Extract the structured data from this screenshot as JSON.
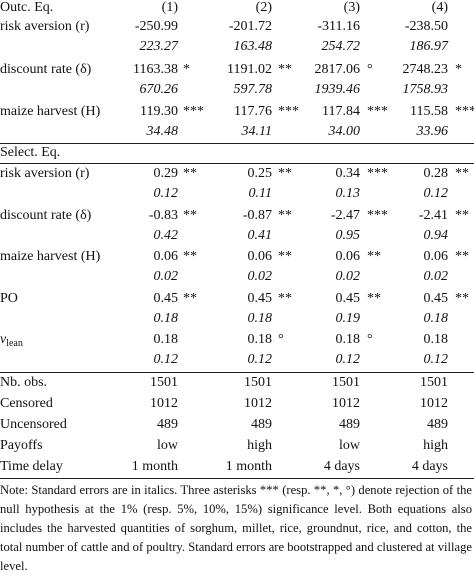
{
  "header": {
    "title": "Outc. Eq.",
    "columns": [
      "(1)",
      "(2)",
      "(3)",
      "(4)"
    ]
  },
  "outcome_rows": [
    {
      "label": "risk aversion (r)",
      "estimates": [
        "-250.99",
        "-201.72",
        "-311.16",
        "-238.50"
      ],
      "stars": [
        null,
        null,
        null,
        null
      ],
      "std_errors": [
        "223.27",
        "163.48",
        "254.72",
        "186.97"
      ]
    },
    {
      "label": "discount rate (δ)",
      "estimates": [
        "1163.38",
        "1191.02",
        "2817.06",
        "2748.23"
      ],
      "stars": [
        "*",
        "**",
        "°",
        "*"
      ],
      "std_errors": [
        "670.26",
        "597.78",
        "1939.46",
        "1758.93"
      ]
    },
    {
      "label": "maize harvest (H)",
      "estimates": [
        "119.30",
        "117.76",
        "117.84",
        "115.58"
      ],
      "stars": [
        "***",
        "***",
        "***",
        "***"
      ],
      "std_errors": [
        "34.48",
        "34.11",
        "34.00",
        "33.96"
      ]
    }
  ],
  "selection": {
    "title": "Select. Eq.",
    "rows": [
      {
        "label": "risk aversion (r)",
        "estimates": [
          "0.29",
          "0.25",
          "0.34",
          "0.28"
        ],
        "stars": [
          "**",
          "**",
          "***",
          "**"
        ],
        "std_errors": [
          "0.12",
          "0.11",
          "0.13",
          "0.12"
        ]
      },
      {
        "label": "discount rate (δ)",
        "estimates": [
          "-0.83",
          "-0.87",
          "-2.47",
          "-2.41"
        ],
        "stars": [
          "**",
          "**",
          "***",
          "**"
        ],
        "std_errors": [
          "0.42",
          "0.41",
          "0.95",
          "0.94"
        ]
      },
      {
        "label": "maize harvest (H)",
        "estimates": [
          "0.06",
          "0.06",
          "0.06",
          "0.06"
        ],
        "stars": [
          "**",
          "**",
          "**",
          "**"
        ],
        "std_errors": [
          "0.02",
          "0.02",
          "0.02",
          "0.02"
        ]
      },
      {
        "label": "PO",
        "estimates": [
          "0.45",
          "0.45",
          "0.45",
          "0.45"
        ],
        "stars": [
          "**",
          "**",
          "**",
          "**"
        ],
        "std_errors": [
          "0.18",
          "0.18",
          "0.19",
          "0.18"
        ]
      },
      {
        "label": {
          "symbol": "ν",
          "sub": "lean"
        },
        "estimates": [
          "0.18",
          "0.18",
          "0.18",
          "0.18"
        ],
        "stars": [
          null,
          "°",
          "°",
          null
        ],
        "std_errors": [
          "0.12",
          "0.12",
          "0.12",
          "0.12"
        ]
      }
    ]
  },
  "summary_rows": [
    {
      "label": "Nb. obs.",
      "values": [
        "1501",
        "1501",
        "1501",
        "1501"
      ]
    },
    {
      "label": "Censored",
      "values": [
        "1012",
        "1012",
        "1012",
        "1012"
      ]
    },
    {
      "label": "Uncensored",
      "values": [
        "489",
        "489",
        "489",
        "489"
      ]
    },
    {
      "label": "Payoffs",
      "values": [
        "low",
        "high",
        "low",
        "high"
      ]
    },
    {
      "label": "Time delay",
      "values": [
        "1 month",
        "1 month",
        "4 days",
        "4 days"
      ]
    }
  ],
  "note": "Note: Standard errors are in italics. Three asterisks *** (resp. **, *, °) denote rejection of the null hypothesis at the 1% (resp. 5%, 10%, 15%) significance level. Both equations also includes the har­vested quantities of sorghum, millet, rice, groundnut, rice, and cotton, the total number of cattle and of poultry. Standard errors are bootstrapped and clustered at village level."
}
